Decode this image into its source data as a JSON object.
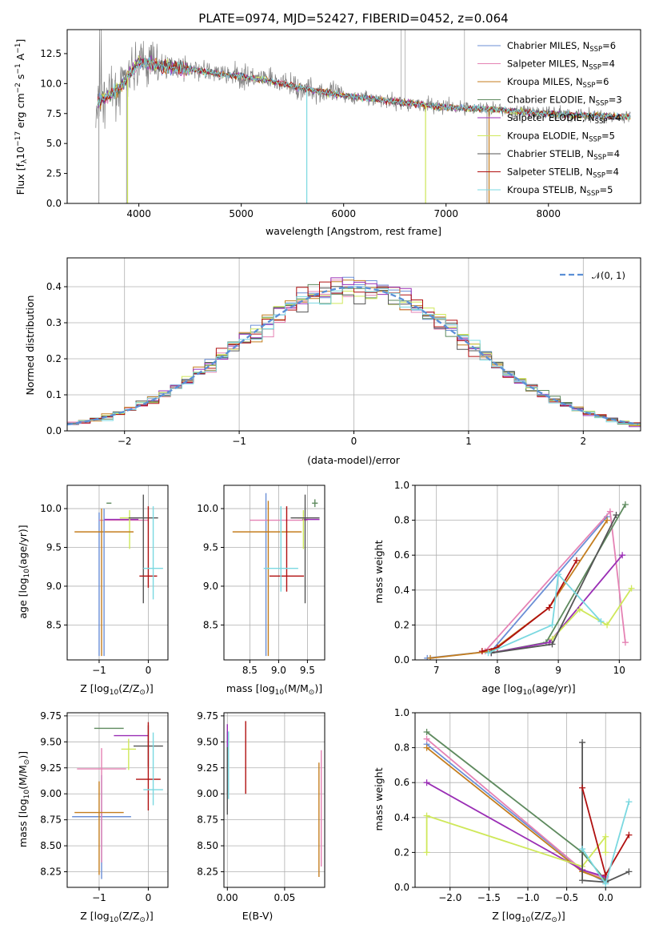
{
  "colors": {
    "chabrier_miles": "#6b8fd6",
    "salpeter_miles": "#e582b4",
    "kroupa_miles": "#c47d1e",
    "chabrier_elodie": "#5e8a5e",
    "salpeter_elodie": "#9a2eb5",
    "kroupa_elodie": "#cfe85a",
    "chabrier_stelib": "#555555",
    "salpeter_stelib": "#b01010",
    "kroupa_stelib": "#7ad8e0",
    "gauss": "#5b8fd6",
    "data": "#808080"
  },
  "chart_data": [
    {
      "id": "spectrum",
      "type": "line",
      "title": "PLATE=0974, MJD=52427, FIBERID=0452, z=0.064",
      "xlabel": "wavelength [Angstrom, rest frame]",
      "ylabel_main": "Flux [f",
      "ylabel_sub": "λ",
      "ylabel_rest": "10",
      "ylabel_exp": "−17",
      "ylabel_units": " erg cm",
      "ylabel_exp2": "−2",
      "ylabel_units2": " s",
      "ylabel_exp3": "−1",
      "ylabel_units3": " A",
      "ylabel_exp4": "−1",
      "ylabel_end": "]",
      "xlim": [
        3300,
        8900
      ],
      "ylim": [
        0,
        14.5
      ],
      "xticks": [
        "4000",
        "5000",
        "6000",
        "7000",
        "8000"
      ],
      "yticks": [
        "0.0",
        "2.5",
        "5.0",
        "7.5",
        "10.0",
        "12.5"
      ],
      "legend_loc": "upper right",
      "legend": [
        {
          "name": "Chabrier MILES, N",
          "sub": "SSP",
          "val": "=6"
        },
        {
          "name": "Salpeter MILES, N",
          "sub": "SSP",
          "val": "=4"
        },
        {
          "name": "Kroupa MILES, N",
          "sub": "SSP",
          "val": "=6"
        },
        {
          "name": "Chabrier ELODIE, N",
          "sub": "SSP",
          "val": "=3"
        },
        {
          "name": "Salpeter ELODIE, N",
          "sub": "SSP",
          "val": "=4"
        },
        {
          "name": "Kroupa ELODIE, N",
          "sub": "SSP",
          "val": "=5"
        },
        {
          "name": "Chabrier STELIB, N",
          "sub": "SSP",
          "val": "=4"
        },
        {
          "name": "Salpeter STELIB, N",
          "sub": "SSP",
          "val": "=4"
        },
        {
          "name": "Kroupa STELIB, N",
          "sub": "SSP",
          "val": "=5"
        }
      ],
      "continuum": [
        [
          3600,
          8.5
        ],
        [
          3800,
          9.5
        ],
        [
          4000,
          11.8
        ],
        [
          4200,
          11.5
        ],
        [
          4500,
          11.2
        ],
        [
          4800,
          10.8
        ],
        [
          5000,
          10.6
        ],
        [
          5300,
          10.2
        ],
        [
          5600,
          9.6
        ],
        [
          6000,
          9.0
        ],
        [
          6500,
          8.5
        ],
        [
          7000,
          8.0
        ],
        [
          7400,
          7.9
        ],
        [
          7800,
          7.6
        ],
        [
          8200,
          7.4
        ],
        [
          8800,
          7.2
        ]
      ]
    },
    {
      "id": "residuals",
      "type": "step",
      "xlabel": "(data-model)/error",
      "ylabel": "Normed distribution",
      "xlim": [
        -2.5,
        2.5
      ],
      "ylim": [
        0,
        0.48
      ],
      "xticks": [
        "−2",
        "−1",
        "0",
        "1",
        "2"
      ],
      "yticks": [
        "0.0",
        "0.1",
        "0.2",
        "0.3",
        "0.4"
      ],
      "legend": "𝒩(0, 1)",
      "bin_width": 0.1,
      "gaussian": {
        "mean": 0,
        "sigma": 1
      }
    },
    {
      "id": "age_vs_Z",
      "type": "errorbar",
      "xlabel": "Z [log",
      "xlabel_sub": "10",
      "xlabel_rest": "(Z/Z",
      "xlabel_sun": "⊙",
      "xlabel_end": ")]",
      "ylabel": "age  [log",
      "ylabel_sub": "10",
      "ylabel_rest": "(age/yr)]",
      "xlim": [
        -1.65,
        0.4
      ],
      "ylim": [
        8.05,
        10.3
      ],
      "xticks": [
        "−1",
        "0"
      ],
      "yticks": [
        "8.5",
        "9.0",
        "9.5",
        "10.0"
      ],
      "points": [
        {
          "series": "chabrier_miles",
          "x": -1.0,
          "xerr": 0.0,
          "y": 9.9,
          "yerr": [
            1.8,
            0.05
          ]
        },
        {
          "series": "salpeter_miles",
          "x": -0.5,
          "xerr": 0.5,
          "y": 9.85,
          "yerr": [
            0.0,
            0.0
          ]
        },
        {
          "series": "kroupa_miles",
          "x": -0.95,
          "xerr": 0.0,
          "y": 9.9,
          "yerr": [
            1.8,
            0.1
          ]
        },
        {
          "series": "chabrier_elodie",
          "x": -0.8,
          "xerr": 0.05,
          "y": 10.07,
          "yerr": [
            0.0,
            0.0
          ]
        },
        {
          "series": "salpeter_elodie",
          "x": -0.55,
          "xerr": 0.35,
          "y": 9.86,
          "yerr": [
            0.0,
            0.0
          ]
        },
        {
          "series": "kroupa_elodie",
          "x": -0.38,
          "xerr": 0.2,
          "y": 9.88,
          "yerr": [
            0.4,
            0.1
          ]
        },
        {
          "series": "chabrier_stelib",
          "x": -0.1,
          "xerr": 0.3,
          "y": 9.88,
          "yerr": [
            1.1,
            0.3
          ]
        },
        {
          "series": "salpeter_stelib",
          "x": 0.0,
          "xerr": 0.18,
          "y": 9.13,
          "yerr": [
            0.15,
            0.9
          ]
        },
        {
          "series": "kroupa_stelib",
          "x": 0.1,
          "xerr": 0.2,
          "y": 9.23,
          "yerr": [
            0.4,
            0.8
          ]
        },
        {
          "series": "kroupa_miles",
          "x": -0.9,
          "xerr": 0.6,
          "y": 9.7,
          "yerr": [
            0.0,
            0.0
          ]
        },
        {
          "series": "chabrier_miles",
          "x": -0.9,
          "xerr": 0.0,
          "y": 9.7,
          "yerr": [
            1.6,
            0.3
          ]
        }
      ]
    },
    {
      "id": "age_vs_mass",
      "type": "errorbar",
      "xlabel": "mass [log",
      "xlabel_sub": "10",
      "xlabel_rest": "(M/M",
      "xlabel_sun": "⊙",
      "xlabel_end": ")]",
      "xlim": [
        8.05,
        9.8
      ],
      "ylim": [
        8.05,
        10.3
      ],
      "xticks": [
        "8.5",
        "9.0",
        "9.5"
      ],
      "yticks": [
        "8.5",
        "9.0",
        "9.5",
        "10.0"
      ],
      "points": [
        {
          "series": "chabrier_miles",
          "x": 8.78,
          "xerr": 0.0,
          "y": 9.9,
          "yerr": [
            1.8,
            0.3
          ]
        },
        {
          "series": "salpeter_miles",
          "x": 9.0,
          "xerr": 0.5,
          "y": 9.85,
          "yerr": [
            0.0,
            0.0
          ]
        },
        {
          "series": "kroupa_miles",
          "x": 8.82,
          "xerr": 0.0,
          "y": 9.9,
          "yerr": [
            1.8,
            0.2
          ]
        },
        {
          "series": "kroupa_miles",
          "x": 8.8,
          "xerr": 0.6,
          "y": 9.7,
          "yerr": [
            0.0,
            0.0
          ]
        },
        {
          "series": "chabrier_elodie",
          "x": 9.63,
          "xerr": 0.05,
          "y": 10.07,
          "yerr": [
            0.05,
            0.05
          ]
        },
        {
          "series": "salpeter_elodie",
          "x": 9.56,
          "xerr": 0.15,
          "y": 9.86,
          "yerr": [
            0.0,
            0.0
          ]
        },
        {
          "series": "kroupa_elodie",
          "x": 9.43,
          "xerr": 0.1,
          "y": 9.88,
          "yerr": [
            0.4,
            0.1
          ]
        },
        {
          "series": "chabrier_stelib",
          "x": 9.46,
          "xerr": 0.25,
          "y": 9.88,
          "yerr": [
            1.1,
            0.3
          ]
        },
        {
          "series": "salpeter_stelib",
          "x": 9.14,
          "xerr": 0.3,
          "y": 9.13,
          "yerr": [
            0.2,
            0.9
          ]
        },
        {
          "series": "kroupa_stelib",
          "x": 9.04,
          "xerr": 0.3,
          "y": 9.23,
          "yerr": [
            0.3,
            0.8
          ]
        }
      ]
    },
    {
      "id": "weight_vs_age",
      "type": "line",
      "xlabel": "age  [log",
      "xlabel_sub": "10",
      "xlabel_rest": "(age/yr)]",
      "ylabel": "mass weight",
      "xlim": [
        6.65,
        10.35
      ],
      "ylim": [
        0,
        1.0
      ],
      "xticks": [
        "7",
        "8",
        "9",
        "10"
      ],
      "yticks": [
        "0.0",
        "0.2",
        "0.4",
        "0.6",
        "0.8",
        "1.0"
      ],
      "series": [
        {
          "name": "chabrier_miles",
          "points": [
            [
              6.85,
              0.01
            ],
            [
              7.9,
              0.05
            ],
            [
              9.8,
              0.82
            ]
          ]
        },
        {
          "name": "salpeter_miles",
          "points": [
            [
              7.8,
              0.05
            ],
            [
              9.85,
              0.85
            ],
            [
              10.1,
              0.1
            ]
          ]
        },
        {
          "name": "kroupa_miles",
          "points": [
            [
              6.9,
              0.01
            ],
            [
              7.9,
              0.05
            ],
            [
              8.85,
              0.3
            ],
            [
              9.8,
              0.8
            ]
          ]
        },
        {
          "name": "chabrier_elodie",
          "points": [
            [
              7.9,
              0.04
            ],
            [
              8.8,
              0.1
            ],
            [
              10.1,
              0.89
            ]
          ]
        },
        {
          "name": "salpeter_elodie",
          "points": [
            [
              7.9,
              0.04
            ],
            [
              8.85,
              0.1
            ],
            [
              10.05,
              0.6
            ]
          ]
        },
        {
          "name": "kroupa_elodie",
          "points": [
            [
              8.9,
              0.12
            ],
            [
              9.35,
              0.29
            ],
            [
              9.8,
              0.2
            ],
            [
              10.2,
              0.41
            ]
          ]
        },
        {
          "name": "chabrier_stelib",
          "points": [
            [
              7.9,
              0.04
            ],
            [
              8.9,
              0.09
            ],
            [
              9.95,
              0.83
            ]
          ]
        },
        {
          "name": "salpeter_stelib",
          "points": [
            [
              7.75,
              0.05
            ],
            [
              8.0,
              0.07
            ],
            [
              8.85,
              0.3
            ],
            [
              9.3,
              0.57
            ]
          ]
        },
        {
          "name": "kroupa_stelib",
          "points": [
            [
              7.85,
              0.04
            ],
            [
              8.9,
              0.2
            ],
            [
              9.0,
              0.49
            ],
            [
              9.7,
              0.22
            ]
          ]
        }
      ]
    },
    {
      "id": "mass_vs_Z",
      "type": "errorbar",
      "xlabel": "Z [log",
      "xlabel_sub": "10",
      "xlabel_rest": "(Z/Z",
      "xlabel_sun": "⊙",
      "xlabel_end": ")]",
      "ylabel": "mass [log",
      "ylabel_sub": "10",
      "ylabel_rest": "(M/M",
      "ylabel_sun": "⊙",
      "ylabel_end": ")]",
      "xlim": [
        -1.65,
        0.4
      ],
      "ylim": [
        8.1,
        9.78
      ],
      "xticks": [
        "−1",
        "0"
      ],
      "yticks": [
        "8.25",
        "8.50",
        "8.75",
        "9.00",
        "9.25",
        "9.50",
        "9.75"
      ],
      "points": [
        {
          "series": "chabrier_miles",
          "x": -0.95,
          "xerr": 0.6,
          "y": 8.78,
          "yerr": [
            0.6,
            0.4
          ]
        },
        {
          "series": "salpeter_miles",
          "x": -0.95,
          "xerr": 0.5,
          "y": 9.24,
          "yerr": [
            0.9,
            0.2
          ]
        },
        {
          "series": "kroupa_miles",
          "x": -1.0,
          "xerr": 0.5,
          "y": 8.82,
          "yerr": [
            0.6,
            0.3
          ]
        },
        {
          "series": "chabrier_elodie",
          "x": -0.8,
          "xerr": 0.3,
          "y": 9.63,
          "yerr": [
            0.0,
            0.0
          ]
        },
        {
          "series": "salpeter_elodie",
          "x": -0.35,
          "xerr": 0.35,
          "y": 9.56,
          "yerr": [
            0.0,
            0.0
          ]
        },
        {
          "series": "kroupa_elodie",
          "x": -0.4,
          "xerr": 0.15,
          "y": 9.43,
          "yerr": [
            0.2,
            0.1
          ]
        },
        {
          "series": "chabrier_stelib",
          "x": 0.0,
          "xerr": 0.3,
          "y": 9.46,
          "yerr": [
            0.2,
            0.2
          ]
        },
        {
          "series": "salpeter_stelib",
          "x": 0.0,
          "xerr": 0.25,
          "y": 9.14,
          "yerr": [
            0.3,
            0.55
          ]
        },
        {
          "series": "kroupa_stelib",
          "x": 0.1,
          "xerr": 0.2,
          "y": 9.04,
          "yerr": [
            0.15,
            0.55
          ]
        }
      ]
    },
    {
      "id": "mass_vs_ebv",
      "type": "errorbar",
      "xlabel": "E(B-V)",
      "xlim": [
        -0.003,
        0.085
      ],
      "ylim": [
        8.1,
        9.78
      ],
      "xticks": [
        "0.00",
        "0.05"
      ],
      "yticks": [
        "8.25",
        "8.50",
        "8.75",
        "9.00",
        "9.25",
        "9.50",
        "9.75"
      ],
      "points": [
        {
          "series": "chabrier_miles",
          "x": 0.0,
          "xerr": 0.0,
          "y": 9.3,
          "yerr": [
            0.3,
            0.3
          ]
        },
        {
          "series": "salpeter_elodie",
          "x": 0.0,
          "xerr": 0.0,
          "y": 9.55,
          "yerr": [
            0.1,
            0.12
          ]
        },
        {
          "series": "chabrier_stelib",
          "x": 0.0,
          "xerr": 0.0,
          "y": 9.25,
          "yerr": [
            0.45,
            0.2
          ]
        },
        {
          "series": "kroupa_stelib",
          "x": 0.001,
          "xerr": 0.0,
          "y": 9.3,
          "yerr": [
            0.35,
            0.3
          ]
        },
        {
          "series": "salpeter_stelib",
          "x": 0.016,
          "xerr": 0.0,
          "y": 9.35,
          "yerr": [
            0.35,
            0.35
          ]
        },
        {
          "series": "salpeter_miles",
          "x": 0.082,
          "xerr": 0.0,
          "y": 8.8,
          "yerr": [
            0.5,
            0.62
          ]
        },
        {
          "series": "kroupa_miles",
          "x": 0.08,
          "xerr": 0.0,
          "y": 8.75,
          "yerr": [
            0.55,
            0.55
          ]
        }
      ]
    },
    {
      "id": "weight_vs_Z",
      "type": "line",
      "xlabel": "Z [log",
      "xlabel_sub": "10",
      "xlabel_rest": "(Z/Z",
      "xlabel_sun": "⊙",
      "xlabel_end": ")]",
      "ylabel": "mass weight",
      "xlim": [
        -2.45,
        0.45
      ],
      "ylim": [
        0,
        1.0
      ],
      "xticks": [
        "−2.0",
        "−1.5",
        "−1.0",
        "−0.5",
        "0.0"
      ],
      "yticks": [
        "0.0",
        "0.2",
        "0.4",
        "0.6",
        "0.8",
        "1.0"
      ],
      "series": [
        {
          "name": "chabrier_miles",
          "points": [
            [
              -2.3,
              0.82
            ],
            [
              -0.3,
              0.1
            ],
            [
              0.0,
              0.03
            ]
          ]
        },
        {
          "name": "salpeter_miles",
          "points": [
            [
              -2.3,
              0.85
            ],
            [
              -0.3,
              0.1
            ],
            [
              0.0,
              0.05
            ]
          ]
        },
        {
          "name": "kroupa_miles",
          "points": [
            [
              -2.3,
              0.8
            ],
            [
              -0.3,
              0.09
            ],
            [
              0.0,
              0.04
            ]
          ]
        },
        {
          "name": "chabrier_elodie",
          "points": [
            [
              -2.3,
              0.89
            ],
            [
              -0.3,
              0.2
            ],
            [
              0.0,
              0.04
            ]
          ]
        },
        {
          "name": "salpeter_elodie",
          "points": [
            [
              -2.3,
              0.6
            ],
            [
              -0.3,
              0.1
            ],
            [
              0.0,
              0.06
            ]
          ]
        },
        {
          "name": "kroupa_elodie",
          "points": [
            [
              -2.3,
              0.2
            ],
            [
              -2.3,
              0.41
            ],
            [
              -0.3,
              0.12
            ],
            [
              0.0,
              0.29
            ],
            [
              0.0,
              0.2
            ]
          ]
        },
        {
          "name": "chabrier_stelib",
          "points": [
            [
              -0.3,
              0.83
            ],
            [
              -0.3,
              0.04
            ],
            [
              0.0,
              0.03
            ],
            [
              0.3,
              0.09
            ]
          ]
        },
        {
          "name": "salpeter_stelib",
          "points": [
            [
              -0.3,
              0.57
            ],
            [
              0.0,
              0.07
            ],
            [
              0.3,
              0.3
            ]
          ]
        },
        {
          "name": "kroupa_stelib",
          "points": [
            [
              -0.3,
              0.22
            ],
            [
              0.0,
              0.02
            ],
            [
              0.3,
              0.49
            ]
          ]
        }
      ]
    }
  ]
}
